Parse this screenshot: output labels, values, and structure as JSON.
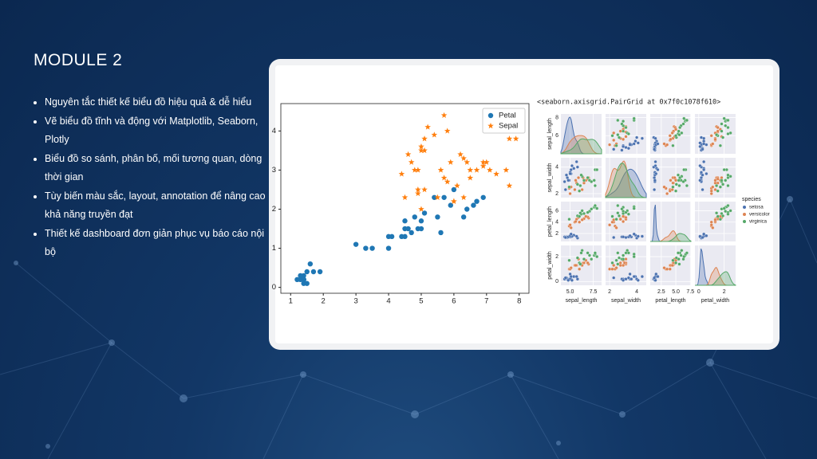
{
  "slide": {
    "title": "MODULE 2",
    "bullets": [
      "Nguyên tắc thiết kế biểu đồ hiệu quả & dễ hiểu",
      "Vẽ biểu đồ tĩnh và động với Matplotlib, Seaborn, Plotly",
      "Biểu đồ so sánh, phân bố, mối tương quan, dòng thời gian",
      "Tùy biến màu sắc, layout, annotation để nâng cao khả năng truyền đạt",
      "Thiết kế dashboard đơn giản phục vụ báo cáo nội bộ"
    ]
  },
  "chart_data": [
    {
      "type": "scatter",
      "xlim": [
        0.7,
        8.3
      ],
      "ylim": [
        -0.15,
        4.7
      ],
      "xticks": [
        1,
        2,
        3,
        4,
        5,
        6,
        7,
        8
      ],
      "yticks": [
        0,
        1,
        2,
        3,
        4
      ],
      "legend": "upper right",
      "series": [
        {
          "name": "Petal",
          "color": "#1f77b4",
          "marker": "circle",
          "x": [
            1.4,
            1.4,
            1.3,
            1.4,
            1.7,
            1.4,
            1.4,
            1.2,
            1.5,
            1.4,
            1.5,
            1.6,
            1.3,
            1.9,
            4.7,
            4.5,
            4.9,
            4.0,
            4.6,
            4.5,
            3.3,
            3.5,
            4.0,
            4.8,
            5.0,
            3.0,
            4.1,
            4.4,
            6.0,
            5.1,
            5.9,
            6.6,
            4.5,
            6.3,
            6.7,
            6.4,
            5.0,
            5.7,
            6.9,
            5.5,
            5.4,
            5.6
          ],
          "values": [
            0.2,
            0.2,
            0.2,
            0.2,
            0.4,
            0.3,
            0.2,
            0.2,
            0.4,
            0.1,
            0.1,
            0.6,
            0.3,
            0.4,
            1.4,
            1.5,
            1.5,
            1.3,
            1.5,
            1.3,
            1.0,
            1.0,
            1.0,
            1.8,
            1.7,
            1.1,
            1.3,
            1.3,
            2.5,
            1.9,
            2.1,
            2.1,
            1.7,
            1.8,
            2.2,
            2.0,
            1.5,
            2.3,
            2.3,
            1.8,
            2.3,
            1.4
          ]
        },
        {
          "name": "Sepal",
          "color": "#ff7f0e",
          "marker": "star",
          "x": [
            5.1,
            4.9,
            4.7,
            5.0,
            5.4,
            4.6,
            4.4,
            5.8,
            5.7,
            4.8,
            5.2,
            5.0,
            4.5,
            5.1,
            7.0,
            6.4,
            6.9,
            5.5,
            6.5,
            5.7,
            4.9,
            5.0,
            6.0,
            5.9,
            6.7,
            5.1,
            5.6,
            6.3,
            6.3,
            5.8,
            7.1,
            7.6,
            4.9,
            7.3,
            7.7,
            7.9,
            6.0,
            6.9,
            7.7,
            6.5,
            6.2,
            6.1
          ],
          "values": [
            3.5,
            3.0,
            3.2,
            3.6,
            3.9,
            3.4,
            2.9,
            4.0,
            4.4,
            3.0,
            4.1,
            3.5,
            2.3,
            3.8,
            3.2,
            3.2,
            3.1,
            2.3,
            2.8,
            2.8,
            2.4,
            2.0,
            2.2,
            3.2,
            3.0,
            2.5,
            3.0,
            2.3,
            3.3,
            2.7,
            3.0,
            3.0,
            2.5,
            2.9,
            3.8,
            3.8,
            2.2,
            3.2,
            2.6,
            3.0,
            3.4,
            2.6
          ]
        }
      ]
    },
    {
      "type": "pairplot",
      "title": "<seaborn.axisgrid.PairGrid at 0x7f0c1078f610>",
      "legend_title": "species",
      "variables": [
        {
          "name": "sepal_length",
          "lim": [
            4.0,
            8.4
          ],
          "xticks": [
            {
              "value": 5,
              "label": "5.0"
            },
            {
              "value": 7.5,
              "label": "7.5"
            }
          ],
          "yticks": [
            6,
            8
          ]
        },
        {
          "name": "sepal_width",
          "lim": [
            1.7,
            4.7
          ],
          "xticks": [
            2,
            4
          ],
          "yticks": [
            2,
            4
          ]
        },
        {
          "name": "petal_length",
          "lim": [
            0.6,
            7.6
          ],
          "xticks": [
            {
              "value": 2.5,
              "label": "2.5"
            },
            {
              "value": 5,
              "label": "5.0"
            },
            {
              "value": 7.5,
              "label": "7.5"
            }
          ],
          "yticks": [
            2,
            4,
            6
          ]
        },
        {
          "name": "petal_width",
          "lim": [
            -0.3,
            2.9
          ],
          "xticks": [
            0,
            2
          ],
          "yticks": [
            0,
            2
          ]
        }
      ],
      "species": [
        {
          "name": "setosa",
          "color": "#4c72b0",
          "rows": [
            [
              5.1,
              3.5,
              1.4,
              0.2
            ],
            [
              4.9,
              3.0,
              1.4,
              0.2
            ],
            [
              4.7,
              3.2,
              1.3,
              0.2
            ],
            [
              5.0,
              3.6,
              1.4,
              0.2
            ],
            [
              5.4,
              3.9,
              1.7,
              0.4
            ],
            [
              4.6,
              3.4,
              1.4,
              0.3
            ],
            [
              4.4,
              2.9,
              1.4,
              0.2
            ],
            [
              5.8,
              4.0,
              1.2,
              0.2
            ],
            [
              5.7,
              4.4,
              1.5,
              0.4
            ],
            [
              4.8,
              3.0,
              1.4,
              0.1
            ],
            [
              5.2,
              4.1,
              1.5,
              0.1
            ],
            [
              5.0,
              3.5,
              1.6,
              0.6
            ],
            [
              4.5,
              2.3,
              1.3,
              0.3
            ],
            [
              5.1,
              3.8,
              1.9,
              0.4
            ]
          ]
        },
        {
          "name": "versicolor",
          "color": "#dd8452",
          "rows": [
            [
              7.0,
              3.2,
              4.7,
              1.4
            ],
            [
              6.4,
              3.2,
              4.5,
              1.5
            ],
            [
              6.9,
              3.1,
              4.9,
              1.5
            ],
            [
              5.5,
              2.3,
              4.0,
              1.3
            ],
            [
              6.5,
              2.8,
              4.6,
              1.5
            ],
            [
              5.7,
              2.8,
              4.5,
              1.3
            ],
            [
              4.9,
              2.4,
              3.3,
              1.0
            ],
            [
              5.0,
              2.0,
              3.5,
              1.0
            ],
            [
              6.0,
              2.2,
              4.0,
              1.0
            ],
            [
              5.9,
              3.2,
              4.8,
              1.8
            ],
            [
              6.7,
              3.0,
              5.0,
              1.7
            ],
            [
              5.1,
              2.5,
              3.0,
              1.1
            ],
            [
              5.6,
              3.0,
              4.1,
              1.3
            ],
            [
              6.3,
              2.3,
              4.4,
              1.3
            ]
          ]
        },
        {
          "name": "virginica",
          "color": "#55a868",
          "rows": [
            [
              6.3,
              3.3,
              6.0,
              2.5
            ],
            [
              5.8,
              2.7,
              5.1,
              1.9
            ],
            [
              7.1,
              3.0,
              5.9,
              2.1
            ],
            [
              7.6,
              3.0,
              6.6,
              2.1
            ],
            [
              4.9,
              2.5,
              4.5,
              1.7
            ],
            [
              7.3,
              2.9,
              6.3,
              1.8
            ],
            [
              7.7,
              3.8,
              6.7,
              2.2
            ],
            [
              7.9,
              3.8,
              6.4,
              2.0
            ],
            [
              6.0,
              2.2,
              5.0,
              1.5
            ],
            [
              6.9,
              3.2,
              5.7,
              2.3
            ],
            [
              7.7,
              2.6,
              6.9,
              2.3
            ],
            [
              6.5,
              3.0,
              5.5,
              1.8
            ],
            [
              6.2,
              3.4,
              5.4,
              2.3
            ],
            [
              6.1,
              2.6,
              5.6,
              1.4
            ]
          ]
        }
      ]
    }
  ]
}
